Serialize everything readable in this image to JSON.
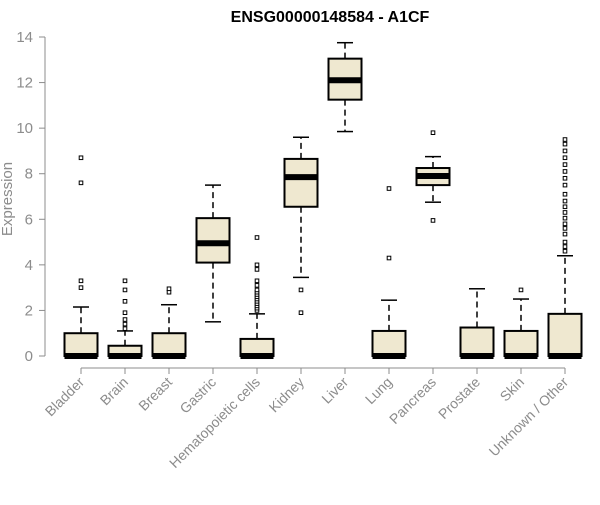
{
  "chart_data": {
    "type": "boxplot",
    "title": "ENSG00000148584 - A1CF",
    "xlabel": "",
    "ylabel": "Expression",
    "ylim": [
      0,
      14
    ],
    "yticks": [
      0,
      2,
      4,
      6,
      8,
      10,
      12,
      14
    ],
    "grid": false,
    "colors": {
      "box_fill": "#efe8d0",
      "box_stroke": "#000000",
      "axis": "#8c8c8c",
      "title": "#000000"
    },
    "categories": [
      "Bladder",
      "Brain",
      "Breast",
      "Gastric",
      "Hematopoietic cells",
      "Kidney",
      "Liver",
      "Lung",
      "Pancreas",
      "Prostate",
      "Skin",
      "Unknown / Other"
    ],
    "boxes": [
      {
        "category": "Bladder",
        "whisker_low": 0,
        "q1": 0,
        "median": 0,
        "q3": 1.0,
        "whisker_high": 2.15,
        "outliers": [
          3.0,
          3.3,
          7.6,
          8.7
        ]
      },
      {
        "category": "Brain",
        "whisker_low": 0,
        "q1": 0,
        "median": 0,
        "q3": 0.45,
        "whisker_high": 1.1,
        "outliers": [
          1.2,
          1.4,
          1.6,
          1.9,
          2.4,
          2.9,
          3.3
        ]
      },
      {
        "category": "Breast",
        "whisker_low": 0,
        "q1": 0,
        "median": 0,
        "q3": 1.0,
        "whisker_high": 2.25,
        "outliers": [
          2.8,
          2.95
        ]
      },
      {
        "category": "Gastric",
        "whisker_low": 1.5,
        "q1": 4.1,
        "median": 4.95,
        "q3": 6.05,
        "whisker_high": 7.5,
        "outliers": []
      },
      {
        "category": "Hematopoietic cells",
        "whisker_low": 0,
        "q1": 0,
        "median": 0,
        "q3": 0.75,
        "whisker_high": 1.85,
        "outliers": [
          2.0,
          2.1,
          2.2,
          2.3,
          2.4,
          2.5,
          2.6,
          2.7,
          2.8,
          2.9,
          3.1,
          3.3,
          3.8,
          4.0,
          5.2
        ]
      },
      {
        "category": "Kidney",
        "whisker_low": 3.45,
        "q1": 6.55,
        "median": 7.85,
        "q3": 8.65,
        "whisker_high": 9.6,
        "outliers": [
          1.9,
          2.9
        ]
      },
      {
        "category": "Liver",
        "whisker_low": 9.85,
        "q1": 11.25,
        "median": 12.1,
        "q3": 13.05,
        "whisker_high": 13.75,
        "outliers": []
      },
      {
        "category": "Lung",
        "whisker_low": 0,
        "q1": 0,
        "median": 0,
        "q3": 1.1,
        "whisker_high": 2.45,
        "outliers": [
          4.3,
          7.35
        ]
      },
      {
        "category": "Pancreas",
        "whisker_low": 6.75,
        "q1": 7.5,
        "median": 7.9,
        "q3": 8.25,
        "whisker_high": 8.75,
        "outliers": [
          5.95,
          9.8
        ]
      },
      {
        "category": "Prostate",
        "whisker_low": 0,
        "q1": 0,
        "median": 0,
        "q3": 1.25,
        "whisker_high": 2.95,
        "outliers": []
      },
      {
        "category": "Skin",
        "whisker_low": 0,
        "q1": 0,
        "median": 0,
        "q3": 1.1,
        "whisker_high": 2.5,
        "outliers": [
          2.9
        ]
      },
      {
        "category": "Unknown / Other",
        "whisker_low": 0,
        "q1": 0,
        "median": 0,
        "q3": 1.85,
        "whisker_high": 4.4,
        "outliers": [
          4.6,
          4.8,
          5.0,
          5.35,
          5.6,
          5.8,
          6.05,
          6.3,
          6.55,
          6.8,
          7.1,
          7.5,
          7.8,
          8.1,
          8.4,
          8.7,
          9.0,
          9.3,
          9.5
        ]
      }
    ]
  }
}
